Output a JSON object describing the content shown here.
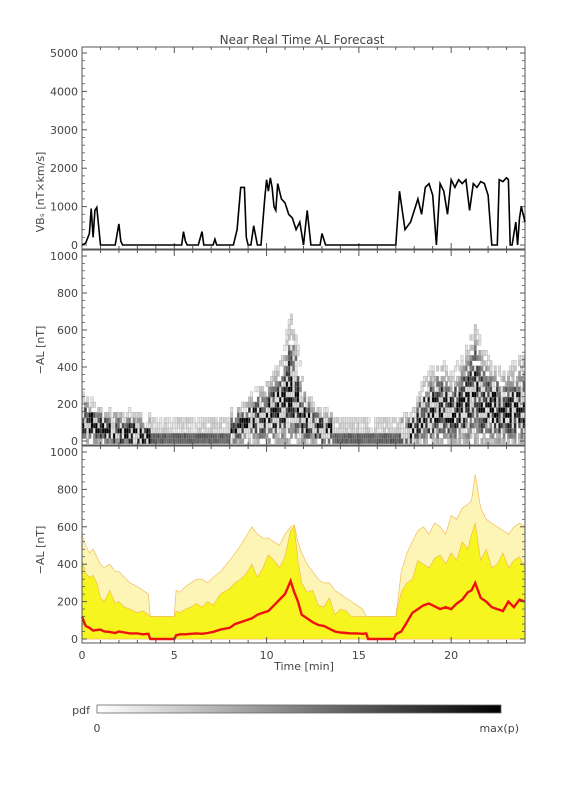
{
  "title": "Near Real Time AL Forecast",
  "colors": {
    "axis": "#555555",
    "vbs_line": "#000000",
    "median_line": "#ee1111",
    "band_inner": "#f7f51f",
    "band_outer": "#fcf5b6",
    "band_edge": "#f2b34a"
  },
  "chart_data": [
    {
      "type": "line",
      "ylabel": "VBₛ [nT×km/s]",
      "ylim": [
        0,
        5000
      ],
      "yticks": [
        "0",
        "1000",
        "2000",
        "3000",
        "4000",
        "5000"
      ],
      "xlim": [
        0,
        24
      ],
      "series": [
        {
          "x": [
            0,
            0.2,
            0.4,
            0.5,
            0.6,
            0.7,
            0.8,
            0.9,
            1.0,
            1.1,
            1.3,
            1.8,
            2.0,
            2.1,
            2.2,
            5.4,
            5.5,
            5.6,
            5.7,
            5.8,
            6.0,
            6.3,
            6.5,
            6.6,
            7.1,
            7.2,
            7.3,
            8.2,
            8.4,
            8.6,
            8.8,
            8.9,
            9.0,
            9.1,
            9.15,
            9.3,
            9.5,
            9.7,
            9.9,
            10.0,
            10.1,
            10.2,
            10.3,
            10.4,
            10.5,
            10.6,
            10.8,
            11.0,
            11.2,
            11.4,
            11.6,
            11.8,
            12.0,
            12.2,
            12.4,
            12.5,
            12.6,
            12.7,
            12.9,
            13.0,
            13.2,
            13.5,
            13.6,
            13.7,
            17.0,
            17.2,
            17.5,
            17.8,
            18.0,
            18.2,
            18.4,
            18.6,
            18.8,
            19.0,
            19.2,
            19.4,
            19.6,
            19.8,
            20.0,
            20.2,
            20.4,
            20.6,
            20.8,
            21.0,
            21.2,
            21.4,
            21.6,
            21.8,
            22.0,
            22.2,
            22.4,
            22.5,
            22.6,
            22.8,
            23.0,
            23.1,
            23.2,
            23.3,
            23.5,
            23.6,
            23.7,
            23.8,
            24.0
          ],
          "values": [
            0,
            50,
            300,
            950,
            200,
            900,
            980,
            500,
            0,
            0,
            0,
            0,
            550,
            100,
            0,
            0,
            350,
            100,
            0,
            0,
            0,
            0,
            350,
            0,
            0,
            150,
            0,
            0,
            400,
            1500,
            1500,
            200,
            0,
            0,
            0,
            500,
            0,
            0,
            1200,
            1700,
            1400,
            1750,
            1500,
            1000,
            900,
            1600,
            1200,
            1100,
            800,
            700,
            400,
            600,
            0,
            900,
            0,
            0,
            0,
            0,
            0,
            300,
            0,
            0,
            0,
            0,
            0,
            1400,
            400,
            600,
            900,
            1200,
            800,
            1500,
            1600,
            1300,
            0,
            1600,
            1400,
            800,
            1700,
            1500,
            1700,
            1600,
            1700,
            900,
            1600,
            1500,
            1650,
            1600,
            1300,
            0,
            0,
            0,
            1700,
            1650,
            1750,
            1700,
            0,
            0,
            600,
            0,
            700,
            1000,
            600
          ]
        }
      ]
    },
    {
      "type": "heatmap",
      "ylabel": "−AL [nT]",
      "ylim": [
        0,
        1000
      ],
      "yticks": [
        "0",
        "200",
        "400",
        "600",
        "800",
        "1000"
      ],
      "xlim": [
        0,
        24
      ],
      "colorbar": {
        "label": "pdf",
        "min_label": "0",
        "max_label": "max(p)"
      },
      "median_profile": {
        "x": [
          0,
          0.5,
          1,
          2,
          3,
          3.8,
          5,
          6,
          7,
          8,
          8.5,
          9,
          9.5,
          10,
          10.5,
          11,
          11.3,
          11.6,
          12,
          12.5,
          13,
          14,
          15,
          16,
          17,
          17.8,
          18.5,
          19,
          19.5,
          20,
          20.5,
          21,
          21.3,
          21.6,
          22,
          22.5,
          23,
          23.5,
          24
        ],
        "values": [
          110,
          95,
          70,
          50,
          45,
          20,
          20,
          30,
          40,
          60,
          80,
          100,
          120,
          140,
          170,
          220,
          300,
          240,
          130,
          90,
          60,
          40,
          35,
          20,
          20,
          40,
          140,
          170,
          180,
          150,
          180,
          230,
          280,
          220,
          190,
          170,
          160,
          180,
          200
        ]
      }
    },
    {
      "type": "area",
      "ylabel": "−AL [nT]",
      "ylim": [
        0,
        1000
      ],
      "yticks": [
        "0",
        "200",
        "400",
        "600",
        "800",
        "1000"
      ],
      "xlabel": "Time [min]",
      "xlim": [
        0,
        24
      ],
      "xticks": [
        "0",
        "5",
        "10",
        "15",
        "20"
      ],
      "series": [
        {
          "x": [
            0,
            0.2,
            0.4,
            0.6,
            0.8,
            1.0,
            1.2,
            1.5,
            1.8,
            2.0,
            2.3,
            2.6,
            3.0,
            3.3,
            3.6,
            3.7,
            3.8,
            5.0,
            5.1,
            5.3,
            5.6,
            5.9,
            6.2,
            6.5,
            6.8,
            7.1,
            7.5,
            8.0,
            8.3,
            8.6,
            8.9,
            9.2,
            9.5,
            9.8,
            10.1,
            10.4,
            10.7,
            11.0,
            11.3,
            11.5,
            11.7,
            11.9,
            12.2,
            12.5,
            12.8,
            13.1,
            13.4,
            13.7,
            14.0,
            14.3,
            14.6,
            14.9,
            15.2,
            15.4,
            15.5,
            16.9,
            17.0,
            17.3,
            17.6,
            17.9,
            18.2,
            18.5,
            18.8,
            19.1,
            19.4,
            19.7,
            20.0,
            20.3,
            20.6,
            20.9,
            21.1,
            21.3,
            21.6,
            21.9,
            22.2,
            22.5,
            22.8,
            23.1,
            23.4,
            23.7,
            24.0
          ],
          "median": [
            120,
            70,
            60,
            45,
            48,
            50,
            40,
            38,
            32,
            40,
            35,
            30,
            30,
            25,
            28,
            0,
            0,
            0,
            20,
            25,
            25,
            28,
            30,
            28,
            32,
            38,
            50,
            60,
            80,
            90,
            100,
            110,
            130,
            140,
            150,
            180,
            210,
            240,
            310,
            250,
            200,
            130,
            110,
            90,
            75,
            70,
            55,
            40,
            35,
            32,
            30,
            30,
            28,
            30,
            0,
            0,
            25,
            40,
            90,
            140,
            160,
            180,
            190,
            175,
            160,
            170,
            160,
            190,
            210,
            250,
            260,
            300,
            220,
            200,
            170,
            160,
            150,
            200,
            170,
            210,
            200
          ],
          "inner_upper": [
            420,
            350,
            330,
            340,
            300,
            220,
            200,
            260,
            190,
            200,
            170,
            160,
            140,
            150,
            130,
            120,
            120,
            120,
            150,
            140,
            160,
            170,
            190,
            170,
            200,
            180,
            240,
            270,
            300,
            320,
            350,
            400,
            330,
            380,
            450,
            420,
            380,
            440,
            580,
            600,
            420,
            300,
            250,
            260,
            180,
            170,
            220,
            130,
            160,
            150,
            120,
            120,
            120,
            120,
            120,
            120,
            120,
            250,
            300,
            320,
            420,
            400,
            380,
            430,
            450,
            400,
            460,
            420,
            520,
            480,
            560,
            620,
            420,
            480,
            380,
            400,
            460,
            380,
            420,
            440,
            380
          ],
          "outer_upper": [
            560,
            500,
            460,
            480,
            440,
            400,
            380,
            400,
            360,
            360,
            330,
            300,
            280,
            260,
            240,
            120,
            120,
            120,
            260,
            250,
            280,
            300,
            320,
            320,
            300,
            330,
            360,
            420,
            460,
            500,
            550,
            600,
            560,
            540,
            540,
            520,
            500,
            560,
            600,
            610,
            520,
            460,
            400,
            360,
            320,
            300,
            300,
            260,
            240,
            220,
            200,
            180,
            160,
            120,
            120,
            120,
            120,
            360,
            460,
            520,
            580,
            600,
            560,
            620,
            600,
            560,
            660,
            640,
            700,
            720,
            740,
            880,
            700,
            640,
            620,
            600,
            580,
            560,
            600,
            620,
            600
          ]
        }
      ]
    }
  ]
}
